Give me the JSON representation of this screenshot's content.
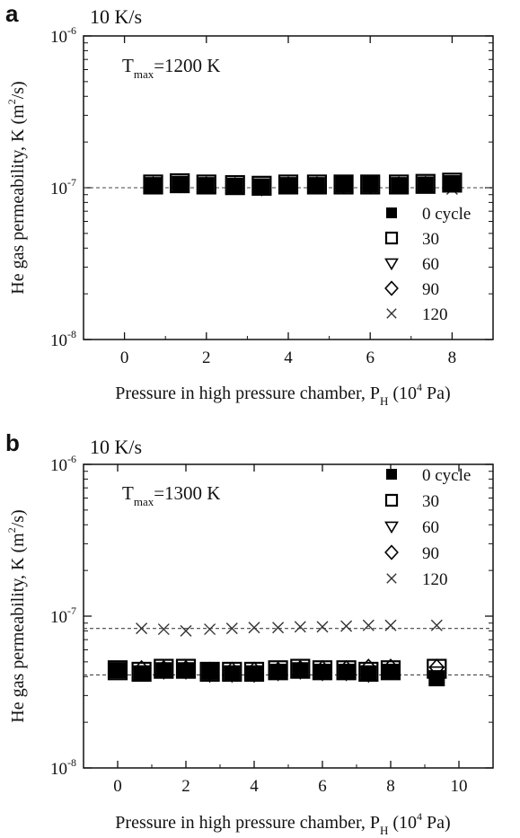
{
  "chart_data": [
    {
      "type": "scatter",
      "panel": "a",
      "rate_label": "10 K/s",
      "tmax_label": {
        "main": "T",
        "sub": "max",
        "rest": "=1200 K"
      },
      "xlabel": {
        "main": "Pressure in high pressure chamber, P",
        "sub": "H",
        "open": " (10",
        "sup": "4",
        "close": " Pa)"
      },
      "ylabel": {
        "main": "He gas permeability, K (m",
        "sup": "2",
        "close": "/s)"
      },
      "xlim": [
        -1,
        9
      ],
      "xticks": [
        0,
        2,
        4,
        6,
        8
      ],
      "xtick_labels": [
        "0",
        "2",
        "4",
        "6",
        "8"
      ],
      "ylim": [
        1e-08,
        1e-06
      ],
      "yscale": "log",
      "yticks": [
        1e-08,
        1e-07,
        1e-06
      ],
      "ytick_labels": [
        {
          "base": "10",
          "exp": "-8"
        },
        {
          "base": "10",
          "exp": "-7"
        },
        {
          "base": "10",
          "exp": "-6"
        }
      ],
      "legend_position": "bottom-right",
      "series": [
        {
          "name": "0 cycle",
          "marker": "filled-square",
          "x": [
            0.7,
            1.35,
            2.0,
            2.7,
            3.35,
            4.0,
            4.7,
            5.35,
            6.0,
            6.7,
            7.35,
            8.0
          ],
          "y": [
            1.04e-07,
            1.06e-07,
            1.04e-07,
            1.03e-07,
            1.02e-07,
            1.04e-07,
            1.04e-07,
            1.05e-07,
            1.05e-07,
            1.04e-07,
            1.05e-07,
            1.07e-07
          ]
        },
        {
          "name": "30",
          "marker": "open-square",
          "x": [
            0.7,
            1.35,
            2.0,
            2.7,
            3.35,
            4.0,
            4.7,
            5.35,
            6.0,
            6.7,
            7.35,
            8.0
          ],
          "y": [
            1.05e-07,
            1.07e-07,
            1.05e-07,
            1.04e-07,
            1.03e-07,
            1.05e-07,
            1.05e-07,
            1.05e-07,
            1.05e-07,
            1.05e-07,
            1.06e-07,
            1.08e-07
          ]
        },
        {
          "name": "60",
          "marker": "open-triangle-down",
          "x": [
            0.7,
            1.35,
            2.0,
            2.7,
            3.35,
            4.0,
            4.7,
            5.35,
            6.0,
            6.7,
            7.35,
            8.0
          ],
          "y": [
            1.02e-07,
            1.04e-07,
            1.02e-07,
            1.01e-07,
            9.9e-08,
            1.02e-07,
            1.02e-07,
            1.03e-07,
            1.03e-07,
            1.02e-07,
            1.03e-07,
            1.05e-07
          ]
        },
        {
          "name": "90",
          "marker": "open-diamond",
          "x": [
            0.7,
            1.35,
            2.0,
            2.7,
            3.35,
            4.0,
            4.7,
            5.35,
            6.0,
            6.7,
            7.35,
            8.0
          ],
          "y": [
            1.04e-07,
            1.05e-07,
            1.04e-07,
            1.03e-07,
            1.01e-07,
            1.04e-07,
            1.04e-07,
            1.04e-07,
            1.04e-07,
            1.04e-07,
            1.05e-07,
            1.06e-07
          ]
        },
        {
          "name": "120",
          "marker": "cross",
          "x": [
            0.7,
            1.35,
            2.0,
            2.7,
            3.35,
            4.0,
            4.7,
            5.35,
            6.0,
            6.7,
            7.35,
            8.0
          ],
          "y": [
            1e-07,
            1.01e-07,
            1e-07,
            1e-07,
            9.8e-08,
            1e-07,
            1e-07,
            1.01e-07,
            1.01e-07,
            1e-07,
            1e-07,
            9.8e-08
          ]
        }
      ],
      "reference_lines": [
        1e-07
      ]
    },
    {
      "type": "scatter",
      "panel": "b",
      "rate_label": "10 K/s",
      "tmax_label": {
        "main": "T",
        "sub": "max",
        "rest": "=1300 K"
      },
      "xlabel": {
        "main": "Pressure in high pressure chamber, P",
        "sub": "H",
        "open": " (10",
        "sup": "4",
        "close": " Pa)"
      },
      "ylabel": {
        "main": "He gas permeability, K (m",
        "sup": "2",
        "close": "/s)"
      },
      "xlim": [
        -1,
        11
      ],
      "xticks": [
        0,
        2,
        4,
        6,
        8,
        10
      ],
      "xtick_labels": [
        "0",
        "2",
        "4",
        "6",
        "8",
        "10"
      ],
      "ylim": [
        1e-08,
        1e-06
      ],
      "yscale": "log",
      "yticks": [
        1e-08,
        1e-07,
        1e-06
      ],
      "ytick_labels": [
        {
          "base": "10",
          "exp": "-8"
        },
        {
          "base": "10",
          "exp": "-7"
        },
        {
          "base": "10",
          "exp": "-6"
        }
      ],
      "legend_position": "top-right",
      "series": [
        {
          "name": "0 cycle",
          "marker": "filled-square",
          "x": [
            0.0,
            0.7,
            1.35,
            2.0,
            2.7,
            3.35,
            4.0,
            4.7,
            5.35,
            6.0,
            6.7,
            7.35,
            8.0,
            9.35
          ],
          "y": [
            4.4e-08,
            4.2e-08,
            4.4e-08,
            4.4e-08,
            4.3e-08,
            4.2e-08,
            4.2e-08,
            4.3e-08,
            4.4e-08,
            4.3e-08,
            4.3e-08,
            4.2e-08,
            4.3e-08,
            3.9e-08
          ]
        },
        {
          "name": "30",
          "marker": "open-square",
          "x": [
            0.0,
            0.7,
            1.35,
            2.0,
            2.7,
            3.35,
            4.0,
            4.7,
            5.35,
            6.0,
            6.7,
            7.35,
            8.0,
            9.35
          ],
          "y": [
            4.4e-08,
            4.3e-08,
            4.5e-08,
            4.5e-08,
            4.3e-08,
            4.3e-08,
            4.3e-08,
            4.4e-08,
            4.5e-08,
            4.4e-08,
            4.4e-08,
            4.3e-08,
            4.4e-08,
            4.5e-08
          ]
        },
        {
          "name": "60",
          "marker": "open-triangle-down",
          "x": [
            0.7,
            1.35,
            2.0,
            2.7,
            3.35,
            4.0,
            4.7,
            5.35,
            6.0,
            6.7,
            7.35,
            8.0,
            9.35
          ],
          "y": [
            4.2e-08,
            4.3e-08,
            4.3e-08,
            4.1e-08,
            4.1e-08,
            4.1e-08,
            4.2e-08,
            4.3e-08,
            4.2e-08,
            4.2e-08,
            4.1e-08,
            4.3e-08,
            4.3e-08
          ]
        },
        {
          "name": "90",
          "marker": "open-diamond",
          "x": [
            0.7,
            1.35,
            2.0,
            2.7,
            3.35,
            4.0,
            4.7,
            5.35,
            6.0,
            6.7,
            7.35,
            8.0,
            9.35
          ],
          "y": [
            4.5e-08,
            4.5e-08,
            4.5e-08,
            4.4e-08,
            4.4e-08,
            4.4e-08,
            4.4e-08,
            4.5e-08,
            4.5e-08,
            4.5e-08,
            4.6e-08,
            4.6e-08,
            4.6e-08
          ]
        },
        {
          "name": "120",
          "marker": "cross",
          "x": [
            0.7,
            1.35,
            2.0,
            2.7,
            3.35,
            4.0,
            4.7,
            5.35,
            6.0,
            6.7,
            7.35,
            8.0,
            9.35
          ],
          "y": [
            8.3e-08,
            8.2e-08,
            8e-08,
            8.2e-08,
            8.3e-08,
            8.4e-08,
            8.4e-08,
            8.5e-08,
            8.5e-08,
            8.6e-08,
            8.7e-08,
            8.7e-08,
            8.7e-08
          ]
        }
      ],
      "reference_lines": [
        8.3e-08,
        4.1e-08
      ]
    }
  ]
}
